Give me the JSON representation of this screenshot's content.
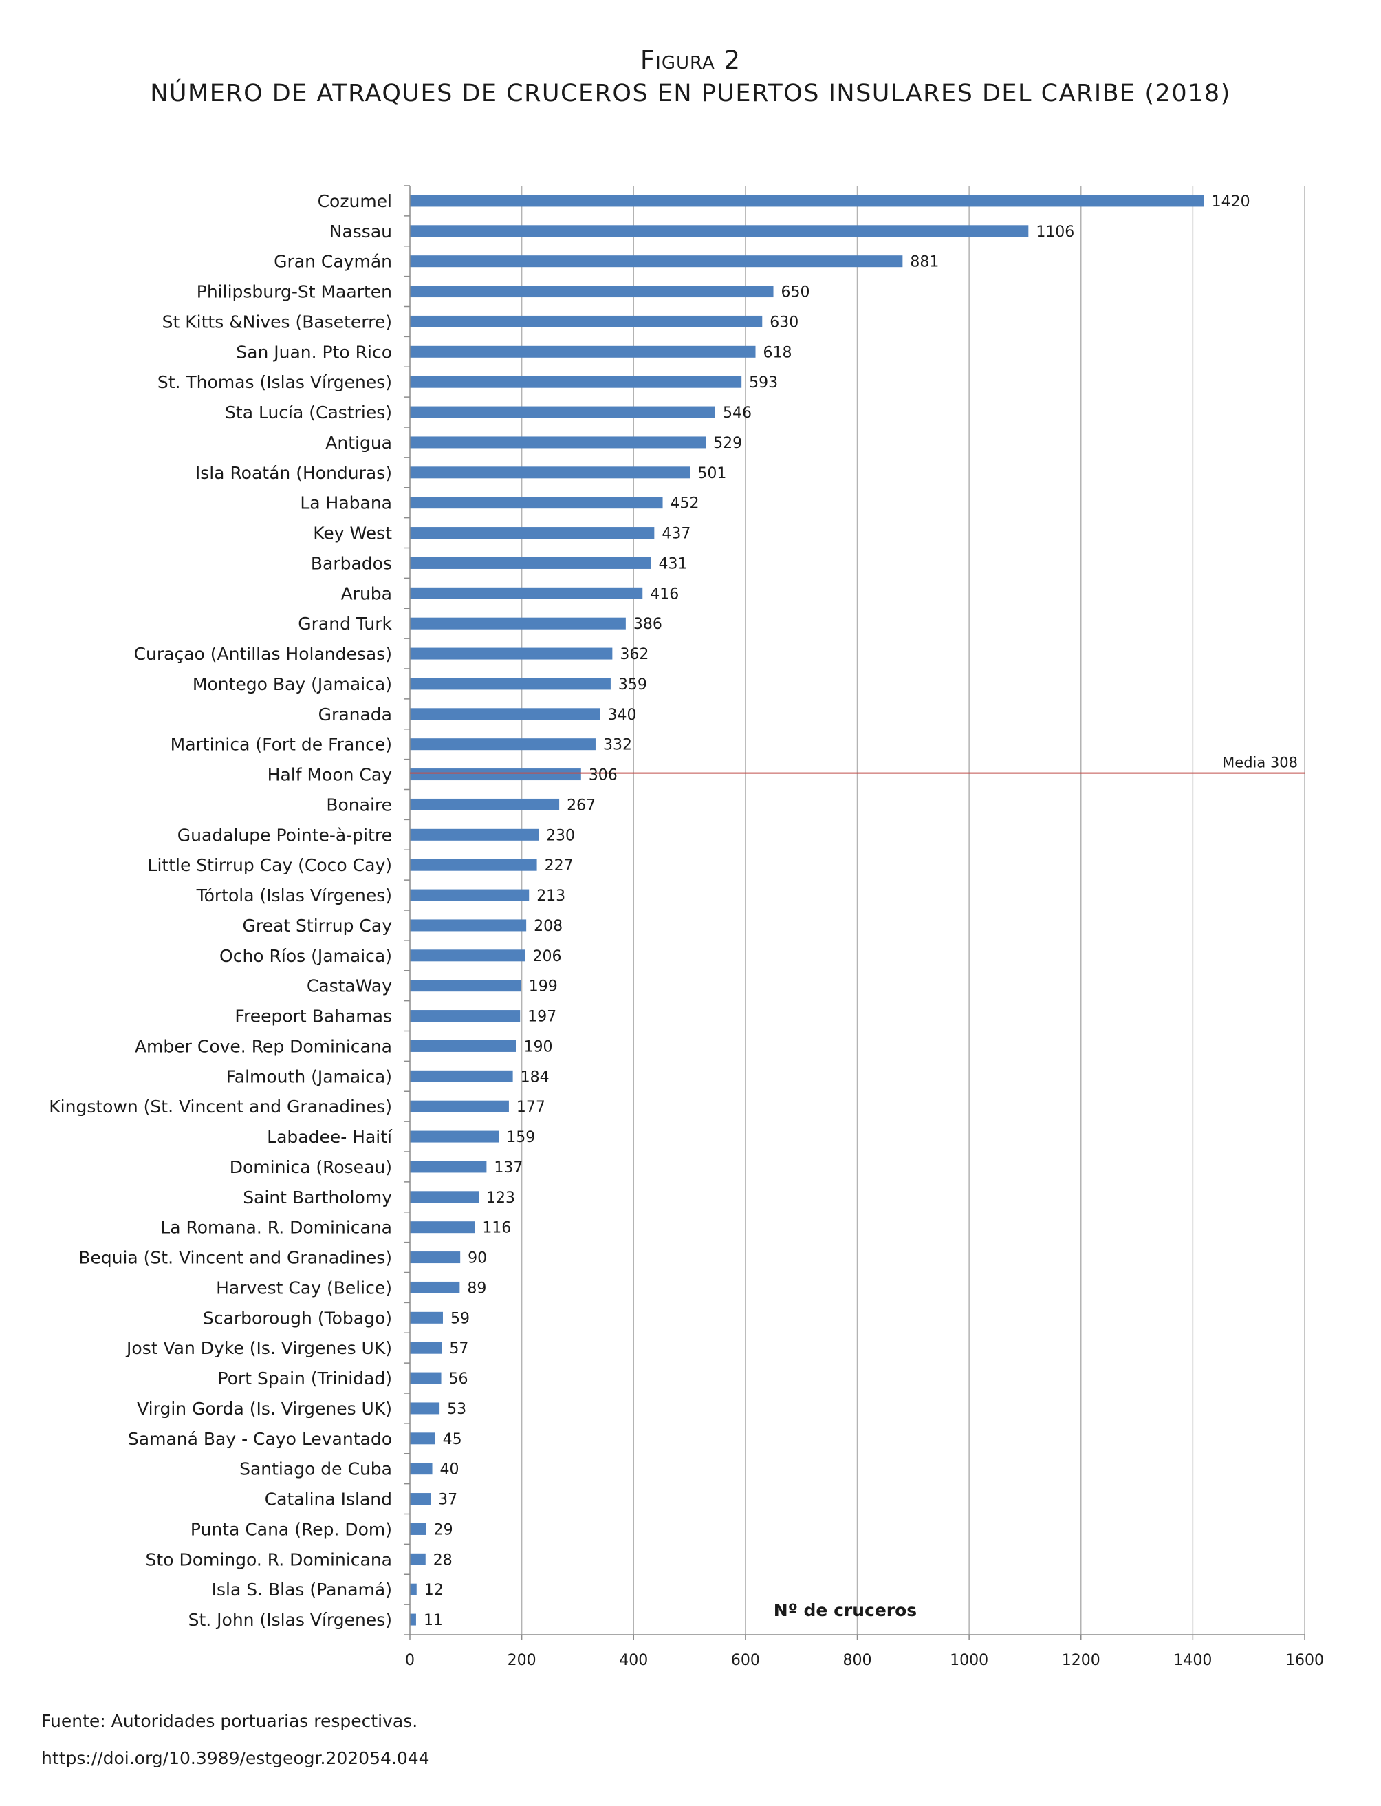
{
  "figure": {
    "label": "Figura 2",
    "title": "NÚMERO DE ATRAQUES DE CRUCEROS EN PUERTOS INSULARES DEL CARIBE (2018)"
  },
  "footer": {
    "source": "Fuente: Autoridades portuarias respectivas.",
    "doi": "https://doi.org/10.3989/estgeogr.202054.044"
  },
  "chart_data": {
    "type": "bar",
    "orientation": "horizontal",
    "xlabel": "Nº de cruceros",
    "ylabel": "",
    "xlim": [
      0,
      1600
    ],
    "xticks": [
      0,
      200,
      400,
      600,
      800,
      1000,
      1200,
      1400,
      1600
    ],
    "grid": "vertical",
    "bar_color": "#4f81bd",
    "data_labels": true,
    "categories": [
      "Cozumel",
      "Nassau",
      "Gran Caymán",
      "Philipsburg-St Maarten",
      "St Kitts &Nives (Baseterre)",
      "San Juan. Pto Rico",
      "St. Thomas (Islas Vírgenes)",
      "Sta Lucía (Castries)",
      "Antigua",
      "Isla Roatán (Honduras)",
      "La Habana",
      "Key West",
      "Barbados",
      "Aruba",
      "Grand Turk",
      "Curaçao (Antillas Holandesas)",
      "Montego Bay (Jamaica)",
      "Granada",
      "Martinica (Fort de France)",
      "Half Moon Cay",
      "Bonaire",
      "Guadalupe Pointe-à-pitre",
      "Little Stirrup Cay  (Coco Cay)",
      "Tórtola (Islas Vírgenes)",
      "Great  Stirrup Cay",
      "Ocho Ríos (Jamaica)",
      "CastaWay",
      "Freeport Bahamas",
      "Amber Cove. Rep Dominicana",
      "Falmouth (Jamaica)",
      "Kingstown (St. Vincent and Granadines)",
      "Labadee- Haití",
      "Dominica (Roseau)",
      "Saint Bartholomy",
      "La Romana. R. Dominicana",
      "Bequia (St. Vincent and Granadines)",
      "Harvest Cay (Belice)",
      "Scarborough (Tobago)",
      "Jost Van Dyke (Is. Virgenes UK)",
      "Port Spain (Trinidad)",
      "Virgin Gorda (Is. Virgenes UK)",
      "Samaná Bay - Cayo Levantado",
      "Santiago de Cuba",
      "Catalina Island",
      "Punta Cana (Rep. Dom)",
      "Sto Domingo. R. Dominicana",
      "Isla S. Blas (Panamá)",
      "St. John (Islas Vírgenes)"
    ],
    "values": [
      1420,
      1106,
      881,
      650,
      630,
      618,
      593,
      546,
      529,
      501,
      452,
      437,
      431,
      416,
      386,
      362,
      359,
      340,
      332,
      306,
      267,
      230,
      227,
      213,
      208,
      206,
      199,
      197,
      190,
      184,
      177,
      159,
      137,
      123,
      116,
      90,
      89,
      59,
      57,
      56,
      53,
      45,
      40,
      37,
      29,
      28,
      12,
      11
    ],
    "reference_line": {
      "label": "Media 308",
      "value": 308,
      "color": "#c0504d"
    }
  }
}
